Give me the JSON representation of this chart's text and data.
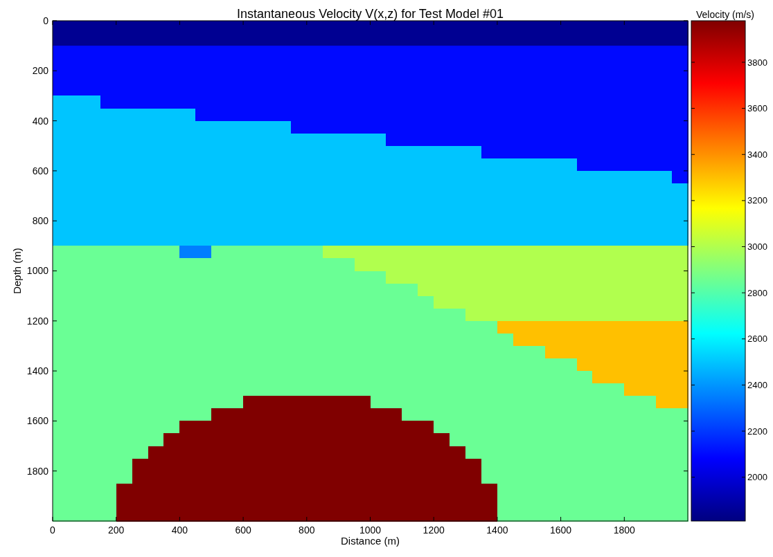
{
  "chart_data": {
    "type": "heatmap",
    "title": "Instantaneous Velocity V(x,z) for Test Model #01",
    "xlabel": "Distance (m)",
    "ylabel": "Depth (m)",
    "clabel": "Velocity (m/s)",
    "xlim": [
      0,
      2000
    ],
    "ylim": [
      2000,
      0
    ],
    "xticks": [
      0,
      200,
      400,
      600,
      800,
      1000,
      1200,
      1400,
      1600,
      1800
    ],
    "yticks": [
      0,
      200,
      400,
      600,
      800,
      1000,
      1200,
      1400,
      1600,
      1800
    ],
    "clim": [
      1810,
      3980
    ],
    "cticks": [
      2000,
      2200,
      2400,
      2600,
      2800,
      3000,
      3200,
      3400,
      3600,
      3800
    ],
    "cells": [
      [
        1850,
        1850,
        1850,
        1850,
        1850,
        1850,
        1850,
        1850,
        1850,
        1850,
        1850,
        1850,
        1850,
        1850,
        1850,
        1850,
        1850,
        1850,
        1850,
        1850,
        1850,
        1850,
        1850,
        1850,
        1850,
        1850,
        1850,
        1850,
        1850,
        1850,
        1850,
        1850,
        1850,
        1850,
        1850,
        1850,
        1850,
        1850,
        1850,
        1850
      ],
      [
        1850,
        1850,
        1850,
        1850,
        1850,
        1850,
        1850,
        1850,
        1850,
        1850,
        1850,
        1850,
        1850,
        1850,
        1850,
        1850,
        1850,
        1850,
        1850,
        1850,
        1850,
        1850,
        1850,
        1850,
        1850,
        1850,
        1850,
        1850,
        1850,
        1850,
        1850,
        1850,
        1850,
        1850,
        1850,
        1850,
        1850,
        1850,
        1850,
        1850
      ],
      [
        2100,
        2100,
        2100,
        2100,
        2100,
        2100,
        2100,
        2100,
        2100,
        2100,
        2100,
        2100,
        2100,
        2100,
        2100,
        2100,
        2100,
        2100,
        2100,
        2100,
        2100,
        2100,
        2100,
        2100,
        2100,
        2100,
        2100,
        2100,
        2100,
        2100,
        2100,
        2100,
        2100,
        2100,
        2100,
        2100,
        2100,
        2100,
        2100,
        2100
      ],
      [
        2100,
        2100,
        2100,
        2100,
        2100,
        2100,
        2100,
        2100,
        2100,
        2100,
        2100,
        2100,
        2100,
        2100,
        2100,
        2100,
        2100,
        2100,
        2100,
        2100,
        2100,
        2100,
        2100,
        2100,
        2100,
        2100,
        2100,
        2100,
        2100,
        2100,
        2100,
        2100,
        2100,
        2100,
        2100,
        2100,
        2100,
        2100,
        2100,
        2100
      ],
      [
        2100,
        2100,
        2100,
        2100,
        2100,
        2100,
        2100,
        2100,
        2100,
        2100,
        2100,
        2100,
        2100,
        2100,
        2100,
        2100,
        2100,
        2100,
        2100,
        2100,
        2100,
        2100,
        2100,
        2100,
        2100,
        2100,
        2100,
        2100,
        2100,
        2100,
        2100,
        2100,
        2100,
        2100,
        2100,
        2100,
        2100,
        2100,
        2100,
        2100
      ],
      [
        2100,
        2100,
        2100,
        2100,
        2100,
        2100,
        2100,
        2100,
        2100,
        2100,
        2100,
        2100,
        2100,
        2100,
        2100,
        2100,
        2100,
        2100,
        2100,
        2100,
        2100,
        2100,
        2100,
        2100,
        2100,
        2100,
        2100,
        2100,
        2100,
        2100,
        2100,
        2100,
        2100,
        2100,
        2100,
        2100,
        2100,
        2100,
        2100,
        2100
      ],
      [
        2500,
        2500,
        2500,
        2100,
        2100,
        2100,
        2100,
        2100,
        2100,
        2100,
        2100,
        2100,
        2100,
        2100,
        2100,
        2100,
        2100,
        2100,
        2100,
        2100,
        2100,
        2100,
        2100,
        2100,
        2100,
        2100,
        2100,
        2100,
        2100,
        2100,
        2100,
        2100,
        2100,
        2100,
        2100,
        2100,
        2100,
        2100,
        2100,
        2100
      ],
      [
        2500,
        2500,
        2500,
        2500,
        2500,
        2500,
        2500,
        2500,
        2500,
        2100,
        2100,
        2100,
        2100,
        2100,
        2100,
        2100,
        2100,
        2100,
        2100,
        2100,
        2100,
        2100,
        2100,
        2100,
        2100,
        2100,
        2100,
        2100,
        2100,
        2100,
        2100,
        2100,
        2100,
        2100,
        2100,
        2100,
        2100,
        2100,
        2100,
        2100
      ],
      [
        2500,
        2500,
        2500,
        2500,
        2500,
        2500,
        2500,
        2500,
        2500,
        2500,
        2500,
        2500,
        2500,
        2500,
        2500,
        2100,
        2100,
        2100,
        2100,
        2100,
        2100,
        2100,
        2100,
        2100,
        2100,
        2100,
        2100,
        2100,
        2100,
        2100,
        2100,
        2100,
        2100,
        2100,
        2100,
        2100,
        2100,
        2100,
        2100,
        2100
      ],
      [
        2500,
        2500,
        2500,
        2500,
        2500,
        2500,
        2500,
        2500,
        2500,
        2500,
        2500,
        2500,
        2500,
        2500,
        2500,
        2500,
        2500,
        2500,
        2500,
        2500,
        2500,
        2100,
        2100,
        2100,
        2100,
        2100,
        2100,
        2100,
        2100,
        2100,
        2100,
        2100,
        2100,
        2100,
        2100,
        2100,
        2100,
        2100,
        2100,
        2100
      ],
      [
        2500,
        2500,
        2500,
        2500,
        2500,
        2500,
        2500,
        2500,
        2500,
        2500,
        2500,
        2500,
        2500,
        2500,
        2500,
        2500,
        2500,
        2500,
        2500,
        2500,
        2500,
        2500,
        2500,
        2500,
        2500,
        2500,
        2500,
        2100,
        2100,
        2100,
        2100,
        2100,
        2100,
        2100,
        2100,
        2100,
        2100,
        2100,
        2100,
        2100
      ],
      [
        2500,
        2500,
        2500,
        2500,
        2500,
        2500,
        2500,
        2500,
        2500,
        2500,
        2500,
        2500,
        2500,
        2500,
        2500,
        2500,
        2500,
        2500,
        2500,
        2500,
        2500,
        2500,
        2500,
        2500,
        2500,
        2500,
        2500,
        2500,
        2500,
        2500,
        2500,
        2500,
        2500,
        2100,
        2100,
        2100,
        2100,
        2100,
        2100,
        2100
      ],
      [
        2500,
        2500,
        2500,
        2500,
        2500,
        2500,
        2500,
        2500,
        2500,
        2500,
        2500,
        2500,
        2500,
        2500,
        2500,
        2500,
        2500,
        2500,
        2500,
        2500,
        2500,
        2500,
        2500,
        2500,
        2500,
        2500,
        2500,
        2500,
        2500,
        2500,
        2500,
        2500,
        2500,
        2500,
        2500,
        2500,
        2500,
        2500,
        2500,
        2100
      ],
      [
        2500,
        2500,
        2500,
        2500,
        2500,
        2500,
        2500,
        2500,
        2500,
        2500,
        2500,
        2500,
        2500,
        2500,
        2500,
        2500,
        2500,
        2500,
        2500,
        2500,
        2500,
        2500,
        2500,
        2500,
        2500,
        2500,
        2500,
        2500,
        2500,
        2500,
        2500,
        2500,
        2500,
        2500,
        2500,
        2500,
        2500,
        2500,
        2500,
        2500
      ],
      [
        2500,
        2500,
        2500,
        2500,
        2500,
        2500,
        2500,
        2500,
        2500,
        2500,
        2500,
        2500,
        2500,
        2500,
        2500,
        2500,
        2500,
        2500,
        2500,
        2500,
        2500,
        2500,
        2500,
        2500,
        2500,
        2500,
        2500,
        2500,
        2500,
        2500,
        2500,
        2500,
        2500,
        2500,
        2500,
        2500,
        2500,
        2500,
        2500,
        2500
      ],
      [
        2500,
        2500,
        2500,
        2500,
        2500,
        2500,
        2500,
        2500,
        2500,
        2500,
        2500,
        2500,
        2500,
        2500,
        2500,
        2500,
        2500,
        2500,
        2500,
        2500,
        2500,
        2500,
        2500,
        2500,
        2500,
        2500,
        2500,
        2500,
        2500,
        2500,
        2500,
        2500,
        2500,
        2500,
        2500,
        2500,
        2500,
        2500,
        2500,
        2500
      ],
      [
        2500,
        2500,
        2500,
        2500,
        2500,
        2500,
        2500,
        2500,
        2500,
        2500,
        2500,
        2500,
        2500,
        2500,
        2500,
        2500,
        2500,
        2500,
        2500,
        2500,
        2500,
        2500,
        2500,
        2500,
        2500,
        2500,
        2500,
        2500,
        2500,
        2500,
        2500,
        2500,
        2500,
        2500,
        2500,
        2500,
        2500,
        2500,
        2500,
        2500
      ],
      [
        2500,
        2500,
        2500,
        2500,
        2500,
        2500,
        2500,
        2500,
        2500,
        2500,
        2500,
        2500,
        2500,
        2500,
        2500,
        2500,
        2500,
        2500,
        2500,
        2500,
        2500,
        2500,
        2500,
        2500,
        2500,
        2500,
        2500,
        2500,
        2500,
        2500,
        2500,
        2500,
        2500,
        2500,
        2500,
        2500,
        2500,
        2500,
        2500,
        2500
      ],
      [
        2850,
        2850,
        2850,
        2850,
        2850,
        2850,
        2850,
        2850,
        2350,
        2350,
        2850,
        2850,
        2850,
        2850,
        2850,
        2850,
        2850,
        3000,
        3000,
        3000,
        3000,
        3000,
        3000,
        3000,
        3000,
        3000,
        3000,
        3000,
        3000,
        3000,
        3000,
        3000,
        3000,
        3000,
        3000,
        3000,
        3000,
        3000,
        3000,
        3000
      ],
      [
        2850,
        2850,
        2850,
        2850,
        2850,
        2850,
        2850,
        2850,
        2850,
        2850,
        2850,
        2850,
        2850,
        2850,
        2850,
        2850,
        2850,
        2850,
        2850,
        3000,
        3000,
        3000,
        3000,
        3000,
        3000,
        3000,
        3000,
        3000,
        3000,
        3000,
        3000,
        3000,
        3000,
        3000,
        3000,
        3000,
        3000,
        3000,
        3000,
        3000
      ],
      [
        2850,
        2850,
        2850,
        2850,
        2850,
        2850,
        2850,
        2850,
        2850,
        2850,
        2850,
        2850,
        2850,
        2850,
        2850,
        2850,
        2850,
        2850,
        2850,
        2850,
        2850,
        3000,
        3000,
        3000,
        3000,
        3000,
        3000,
        3000,
        3000,
        3000,
        3000,
        3000,
        3000,
        3000,
        3000,
        3000,
        3000,
        3000,
        3000,
        3000
      ],
      [
        2850,
        2850,
        2850,
        2850,
        2850,
        2850,
        2850,
        2850,
        2850,
        2850,
        2850,
        2850,
        2850,
        2850,
        2850,
        2850,
        2850,
        2850,
        2850,
        2850,
        2850,
        2850,
        2850,
        3000,
        3000,
        3000,
        3000,
        3000,
        3000,
        3000,
        3000,
        3000,
        3000,
        3000,
        3000,
        3000,
        3000,
        3000,
        3000,
        3000
      ],
      [
        2850,
        2850,
        2850,
        2850,
        2850,
        2850,
        2850,
        2850,
        2850,
        2850,
        2850,
        2850,
        2850,
        2850,
        2850,
        2850,
        2850,
        2850,
        2850,
        2850,
        2850,
        2850,
        2850,
        2850,
        3000,
        3000,
        3000,
        3000,
        3000,
        3000,
        3000,
        3000,
        3000,
        3000,
        3000,
        3000,
        3000,
        3000,
        3000,
        3000
      ],
      [
        2850,
        2850,
        2850,
        2850,
        2850,
        2850,
        2850,
        2850,
        2850,
        2850,
        2850,
        2850,
        2850,
        2850,
        2850,
        2850,
        2850,
        2850,
        2850,
        2850,
        2850,
        2850,
        2850,
        2850,
        2850,
        2850,
        3000,
        3000,
        3000,
        3000,
        3000,
        3000,
        3000,
        3000,
        3000,
        3000,
        3000,
        3000,
        3000,
        3000
      ],
      [
        2850,
        2850,
        2850,
        2850,
        2850,
        2850,
        2850,
        2850,
        2850,
        2850,
        2850,
        2850,
        2850,
        2850,
        2850,
        2850,
        2850,
        2850,
        2850,
        2850,
        2850,
        2850,
        2850,
        2850,
        2850,
        2850,
        2850,
        2850,
        3300,
        3300,
        3300,
        3300,
        3300,
        3300,
        3300,
        3300,
        3300,
        3300,
        3300,
        3300
      ],
      [
        2850,
        2850,
        2850,
        2850,
        2850,
        2850,
        2850,
        2850,
        2850,
        2850,
        2850,
        2850,
        2850,
        2850,
        2850,
        2850,
        2850,
        2850,
        2850,
        2850,
        2850,
        2850,
        2850,
        2850,
        2850,
        2850,
        2850,
        2850,
        2850,
        3300,
        3300,
        3300,
        3300,
        3300,
        3300,
        3300,
        3300,
        3300,
        3300,
        3300
      ],
      [
        2850,
        2850,
        2850,
        2850,
        2850,
        2850,
        2850,
        2850,
        2850,
        2850,
        2850,
        2850,
        2850,
        2850,
        2850,
        2850,
        2850,
        2850,
        2850,
        2850,
        2850,
        2850,
        2850,
        2850,
        2850,
        2850,
        2850,
        2850,
        2850,
        2850,
        2850,
        3300,
        3300,
        3300,
        3300,
        3300,
        3300,
        3300,
        3300,
        3300
      ],
      [
        2850,
        2850,
        2850,
        2850,
        2850,
        2850,
        2850,
        2850,
        2850,
        2850,
        2850,
        2850,
        2850,
        2850,
        2850,
        2850,
        2850,
        2850,
        2850,
        2850,
        2850,
        2850,
        2850,
        2850,
        2850,
        2850,
        2850,
        2850,
        2850,
        2850,
        2850,
        2850,
        2850,
        3300,
        3300,
        3300,
        3300,
        3300,
        3300,
        3300
      ],
      [
        2850,
        2850,
        2850,
        2850,
        2850,
        2850,
        2850,
        2850,
        2850,
        2850,
        2850,
        2850,
        2850,
        2850,
        2850,
        2850,
        2850,
        2850,
        2850,
        2850,
        2850,
        2850,
        2850,
        2850,
        2850,
        2850,
        2850,
        2850,
        2850,
        2850,
        2850,
        2850,
        2850,
        2850,
        3300,
        3300,
        3300,
        3300,
        3300,
        3300
      ],
      [
        2850,
        2850,
        2850,
        2850,
        2850,
        2850,
        2850,
        2850,
        2850,
        2850,
        2850,
        2850,
        2850,
        2850,
        2850,
        2850,
        2850,
        2850,
        2850,
        2850,
        2850,
        2850,
        2850,
        2850,
        2850,
        2850,
        2850,
        2850,
        2850,
        2850,
        2850,
        2850,
        2850,
        2850,
        2850,
        2850,
        3300,
        3300,
        3300,
        3300
      ],
      [
        2850,
        2850,
        2850,
        2850,
        2850,
        2850,
        2850,
        2850,
        2850,
        2850,
        2850,
        2850,
        3980,
        3980,
        3980,
        3980,
        3980,
        3980,
        3980,
        3980,
        2850,
        2850,
        2850,
        2850,
        2850,
        2850,
        2850,
        2850,
        2850,
        2850,
        2850,
        2850,
        2850,
        2850,
        2850,
        2850,
        2850,
        2850,
        3300,
        3300
      ],
      [
        2850,
        2850,
        2850,
        2850,
        2850,
        2850,
        2850,
        2850,
        2850,
        2850,
        3980,
        3980,
        3980,
        3980,
        3980,
        3980,
        3980,
        3980,
        3980,
        3980,
        3980,
        3980,
        2850,
        2850,
        2850,
        2850,
        2850,
        2850,
        2850,
        2850,
        2850,
        2850,
        2850,
        2850,
        2850,
        2850,
        2850,
        2850,
        2850,
        2850
      ],
      [
        2850,
        2850,
        2850,
        2850,
        2850,
        2850,
        2850,
        2850,
        3980,
        3980,
        3980,
        3980,
        3980,
        3980,
        3980,
        3980,
        3980,
        3980,
        3980,
        3980,
        3980,
        3980,
        3980,
        3980,
        2850,
        2850,
        2850,
        2850,
        2850,
        2850,
        2850,
        2850,
        2850,
        2850,
        2850,
        2850,
        2850,
        2850,
        2850,
        2850
      ],
      [
        2850,
        2850,
        2850,
        2850,
        2850,
        2850,
        2850,
        3980,
        3980,
        3980,
        3980,
        3980,
        3980,
        3980,
        3980,
        3980,
        3980,
        3980,
        3980,
        3980,
        3980,
        3980,
        3980,
        3980,
        3980,
        2850,
        2850,
        2850,
        2850,
        2850,
        2850,
        2850,
        2850,
        2850,
        2850,
        2850,
        2850,
        2850,
        2850,
        2850
      ],
      [
        2850,
        2850,
        2850,
        2850,
        2850,
        2850,
        3980,
        3980,
        3980,
        3980,
        3980,
        3980,
        3980,
        3980,
        3980,
        3980,
        3980,
        3980,
        3980,
        3980,
        3980,
        3980,
        3980,
        3980,
        3980,
        3980,
        2850,
        2850,
        2850,
        2850,
        2850,
        2850,
        2850,
        2850,
        2850,
        2850,
        2850,
        2850,
        2850,
        2850
      ],
      [
        2850,
        2850,
        2850,
        2850,
        2850,
        3980,
        3980,
        3980,
        3980,
        3980,
        3980,
        3980,
        3980,
        3980,
        3980,
        3980,
        3980,
        3980,
        3980,
        3980,
        3980,
        3980,
        3980,
        3980,
        3980,
        3980,
        3980,
        2850,
        2850,
        2850,
        2850,
        2850,
        2850,
        2850,
        2850,
        2850,
        2850,
        2850,
        2850,
        2850
      ],
      [
        2850,
        2850,
        2850,
        2850,
        2850,
        3980,
        3980,
        3980,
        3980,
        3980,
        3980,
        3980,
        3980,
        3980,
        3980,
        3980,
        3980,
        3980,
        3980,
        3980,
        3980,
        3980,
        3980,
        3980,
        3980,
        3980,
        3980,
        2850,
        2850,
        2850,
        2850,
        2850,
        2850,
        2850,
        2850,
        2850,
        2850,
        2850,
        2850,
        2850
      ],
      [
        2850,
        2850,
        2850,
        2850,
        3980,
        3980,
        3980,
        3980,
        3980,
        3980,
        3980,
        3980,
        3980,
        3980,
        3980,
        3980,
        3980,
        3980,
        3980,
        3980,
        3980,
        3980,
        3980,
        3980,
        3980,
        3980,
        3980,
        3980,
        2850,
        2850,
        2850,
        2850,
        2850,
        2850,
        2850,
        2850,
        2850,
        2850,
        2850,
        2850
      ],
      [
        2850,
        2850,
        2850,
        2850,
        3980,
        3980,
        3980,
        3980,
        3980,
        3980,
        3980,
        3980,
        3980,
        3980,
        3980,
        3980,
        3980,
        3980,
        3980,
        3980,
        3980,
        3980,
        3980,
        3980,
        3980,
        3980,
        3980,
        3980,
        2850,
        2850,
        2850,
        2850,
        2850,
        2850,
        2850,
        2850,
        2850,
        2850,
        2850,
        2850
      ],
      [
        2850,
        2850,
        2850,
        2850,
        3980,
        3980,
        3980,
        3980,
        3980,
        3980,
        3980,
        3980,
        3980,
        3980,
        3980,
        3980,
        3980,
        3980,
        3980,
        3980,
        3980,
        3980,
        3980,
        3980,
        3980,
        3980,
        3980,
        3980,
        2850,
        2850,
        2850,
        2850,
        2850,
        2850,
        2850,
        2850,
        2850,
        2850,
        2850,
        2850
      ]
    ]
  }
}
